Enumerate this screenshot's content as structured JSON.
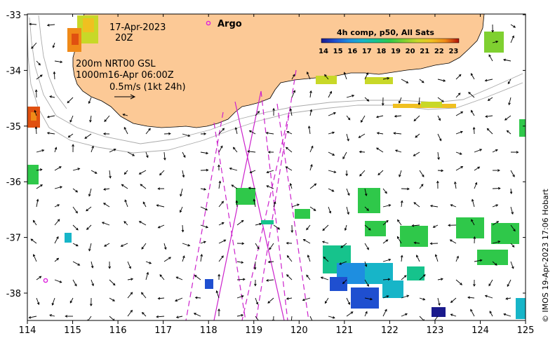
{
  "date_line": "17-Apr-2023",
  "time_line": "20Z",
  "legend_argo_label": "Argo",
  "info": {
    "line1": "200m  NRT00 GSL",
    "line2": "1000m16-Apr 06:00Z",
    "line3": "0.5m/s (1kt 24h)"
  },
  "colorbar": {
    "title": "4h comp, p50, All Sats",
    "ticks": [
      "14",
      "15",
      "16",
      "17",
      "18",
      "19",
      "20",
      "21",
      "22",
      "23"
    ],
    "colors": [
      "#1a1a8c",
      "#1f4fd0",
      "#1e8ee0",
      "#17b5c8",
      "#16c38c",
      "#2fc84a",
      "#7fd030",
      "#c8d828",
      "#f0c020",
      "#f08a18",
      "#e05010",
      "#b01008"
    ]
  },
  "x_ticks": [
    "114",
    "115",
    "116",
    "117",
    "118",
    "119",
    "120",
    "121",
    "122",
    "123",
    "124",
    "125"
  ],
  "y_ticks": [
    "-33",
    "-34",
    "-35",
    "-36",
    "-37",
    "-38"
  ],
  "credit": "© IMOS 19-Apr-2023 17:06 Hobart",
  "colors": {
    "land": "#fcc996",
    "track": "#cc22cc",
    "contour": "#aaaaaa",
    "argo": "#dd22dd"
  }
}
